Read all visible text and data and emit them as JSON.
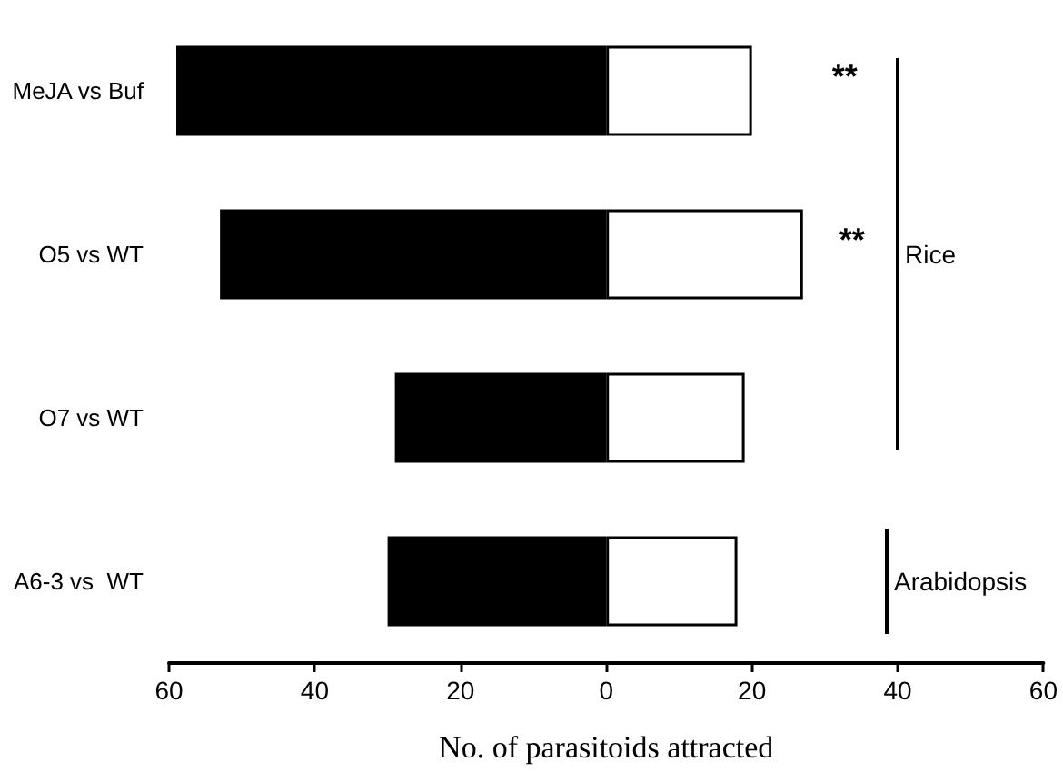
{
  "chart_data": {
    "type": "bar",
    "orientation": "horizontal",
    "stacked": true,
    "xlabel": "No. of parasitoids attracted",
    "categories": [
      "MeJA vs Buf",
      "O5 vs WT",
      "O7 vs WT",
      "A6-3 vs  WT"
    ],
    "series": [
      {
        "color": "#000000",
        "values": [
          -59,
          -53,
          -29,
          -30
        ]
      },
      {
        "color": "#ffffff",
        "values": [
          20,
          27,
          19,
          18
        ]
      }
    ],
    "xlim": [
      -60,
      60
    ],
    "xticks": [
      {
        "value": -60,
        "label": "60"
      },
      {
        "value": -40,
        "label": "40"
      },
      {
        "value": -20,
        "label": "20"
      },
      0,
      20,
      40,
      60
    ],
    "annotations": [
      "**",
      "**",
      "Rice",
      "Arabidopsis"
    ],
    "grid": false
  }
}
